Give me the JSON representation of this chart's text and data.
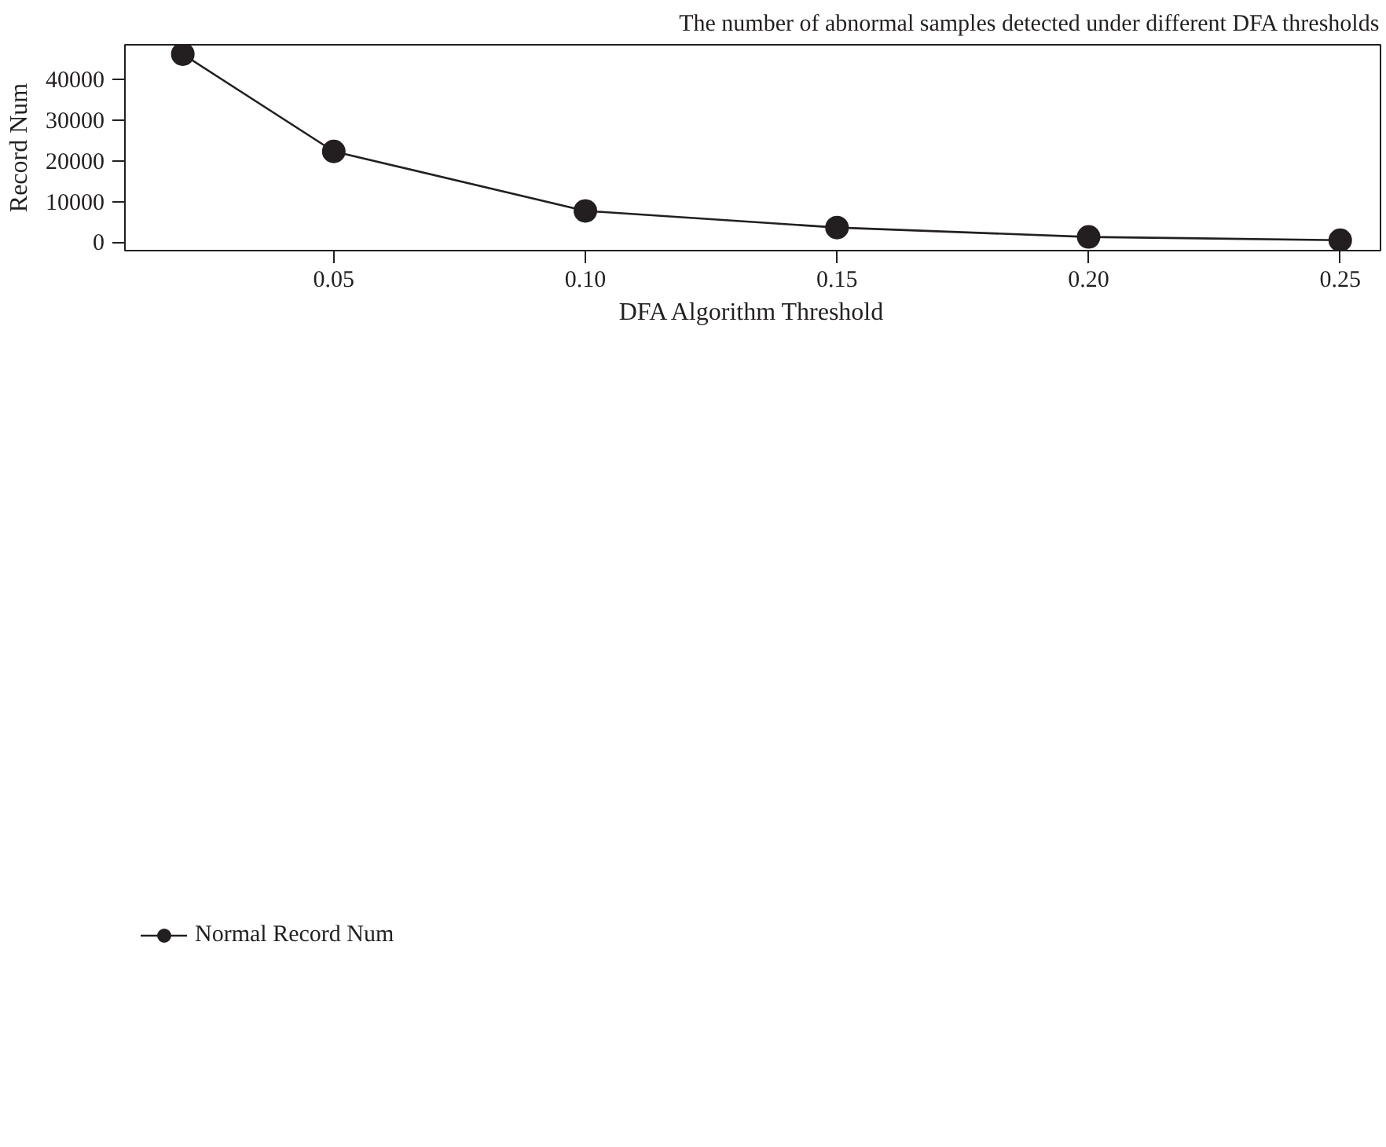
{
  "chart_data": {
    "type": "line",
    "title": "The number of abnormal samples detected under different DFA thresholds",
    "xlabel": "DFA Algorithm Threshold",
    "ylabel": "Record Num",
    "x": [
      0.02,
      0.05,
      0.1,
      0.15,
      0.2,
      0.25
    ],
    "series": [
      {
        "name": "Normal Record Num",
        "color": "#231f20",
        "values": [
          46200,
          22300,
          7700,
          3600,
          1300,
          500
        ]
      }
    ],
    "xlim": [
      0.0085,
      0.258
    ],
    "ylim": [
      -2060,
      48500
    ],
    "xticks": [
      {
        "value": 0.05,
        "label": "0.05"
      },
      {
        "value": 0.1,
        "label": "0.10"
      },
      {
        "value": 0.15,
        "label": "0.15"
      },
      {
        "value": 0.2,
        "label": "0.20"
      },
      {
        "value": 0.25,
        "label": "0.25"
      }
    ],
    "yticks": [
      0,
      10000,
      20000,
      30000,
      40000
    ],
    "grid": false,
    "legend": "bottom left",
    "marker": "circle",
    "line_style": "solid"
  }
}
